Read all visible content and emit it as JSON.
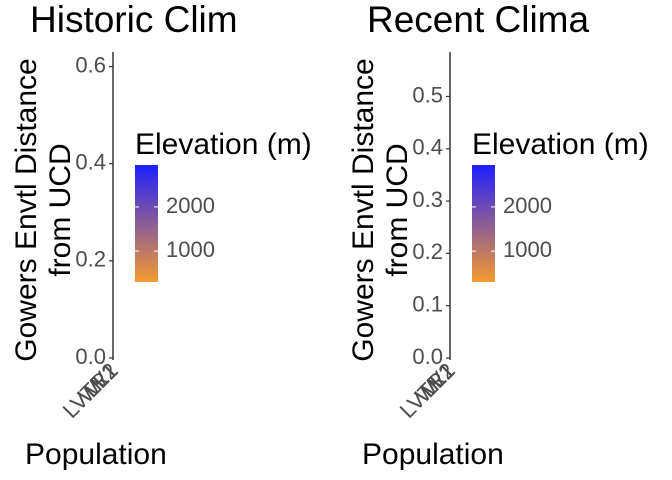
{
  "chart_data": [
    {
      "type": "bar",
      "title": "Historic Clim",
      "y_label": [
        "Gowers Envtl Distance",
        "from UCD"
      ],
      "x_label": "Population",
      "categories": [
        "LV1",
        "LVTR1",
        "WL1",
        "WL2"
      ],
      "ylim": [
        0,
        0.63
      ],
      "yticks": [
        {
          "value": 0,
          "label": "0.0"
        },
        0.2,
        0.4,
        0.6
      ],
      "legend": {
        "title": "Elevation (m)",
        "colors": [
          "#f59a2f",
          "#1f1fff"
        ],
        "lim": [
          300,
          2950
        ],
        "ticks": [
          1000,
          2000
        ]
      }
    },
    {
      "type": "bar",
      "title": "Recent Clima",
      "y_label": [
        "Gowers Envtl Distance",
        "from UCD"
      ],
      "x_label": "Population",
      "categories": [
        "LV1",
        "LVTR1",
        "WL1",
        "WL2"
      ],
      "ylim": [
        0,
        0.585
      ],
      "yticks": [
        {
          "value": 0,
          "label": "0.0"
        },
        0.1,
        0.2,
        0.3,
        0.4,
        0.5
      ],
      "legend": {
        "title": "Elevation (m)",
        "colors": [
          "#f59a2f",
          "#1f1fff"
        ],
        "lim": [
          300,
          2950
        ],
        "ticks": [
          1000,
          2000
        ]
      }
    }
  ]
}
